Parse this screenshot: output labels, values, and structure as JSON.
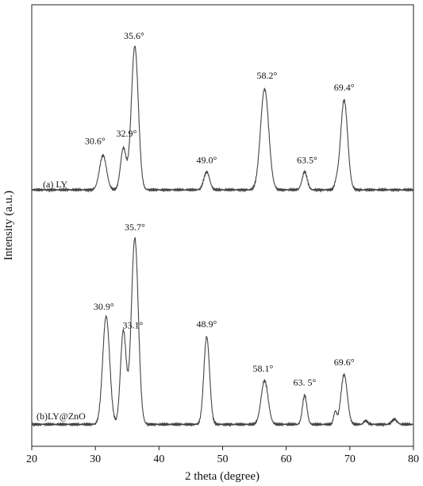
{
  "chart_data": {
    "type": "line",
    "title": "",
    "xlabel": "2 theta (degree)",
    "ylabel": "Intensity (a.u.)",
    "xlim": [
      20,
      80
    ],
    "x_ticks": [
      "20",
      "30",
      "40",
      "50",
      "60",
      "70",
      "80"
    ],
    "y_ticks_shown": false,
    "grid": false,
    "series": [
      {
        "name": "(a)  LY",
        "color": "#444444",
        "baseline": 0.08,
        "peaks": [
          {
            "x": 31.2,
            "height": 0.5,
            "width": 0.55
          },
          {
            "x": 34.4,
            "height": 0.6,
            "width": 0.45
          },
          {
            "x": 36.2,
            "height": 2.08,
            "width": 0.55
          },
          {
            "x": 47.5,
            "height": 0.26,
            "width": 0.45
          },
          {
            "x": 56.6,
            "height": 1.46,
            "width": 0.65
          },
          {
            "x": 62.9,
            "height": 0.26,
            "width": 0.4
          },
          {
            "x": 67.9,
            "height": 0.09,
            "width": 0.3
          },
          {
            "x": 69.1,
            "height": 1.3,
            "width": 0.55
          }
        ],
        "annotations": [
          {
            "text": "30.6°",
            "x": 31.2
          },
          {
            "text": "32.9°",
            "x": 34.4
          },
          {
            "text": "35.6°",
            "x": 36.2
          },
          {
            "text": "49.0°",
            "x": 47.5
          },
          {
            "text": "58.2°",
            "x": 56.6
          },
          {
            "text": "63.5°",
            "x": 62.9
          },
          {
            "text": "69.4°",
            "x": 69.1
          }
        ]
      },
      {
        "name": "(b)LY@ZnO",
        "color": "#444444",
        "baseline": 0.05,
        "peaks": [
          {
            "x": 31.7,
            "height": 1.48,
            "width": 0.55
          },
          {
            "x": 34.4,
            "height": 1.28,
            "width": 0.45
          },
          {
            "x": 36.2,
            "height": 2.55,
            "width": 0.55
          },
          {
            "x": 47.5,
            "height": 1.2,
            "width": 0.45
          },
          {
            "x": 56.6,
            "height": 0.6,
            "width": 0.55
          },
          {
            "x": 62.9,
            "height": 0.4,
            "width": 0.35
          },
          {
            "x": 67.7,
            "height": 0.17,
            "width": 0.25
          },
          {
            "x": 69.1,
            "height": 0.68,
            "width": 0.5
          },
          {
            "x": 72.5,
            "height": 0.05,
            "width": 0.3
          },
          {
            "x": 77.0,
            "height": 0.07,
            "width": 0.4
          }
        ],
        "annotations": [
          {
            "text": "30.9°",
            "x": 31.7
          },
          {
            "text": "33.1°",
            "x": 34.4
          },
          {
            "text": "35.7°",
            "x": 36.2
          },
          {
            "text": "48.9°",
            "x": 47.5
          },
          {
            "text": "58.1°",
            "x": 56.6
          },
          {
            "text": "63. 5°",
            "x": 62.9
          },
          {
            "text": "69.6°",
            "x": 69.1
          }
        ]
      }
    ]
  }
}
